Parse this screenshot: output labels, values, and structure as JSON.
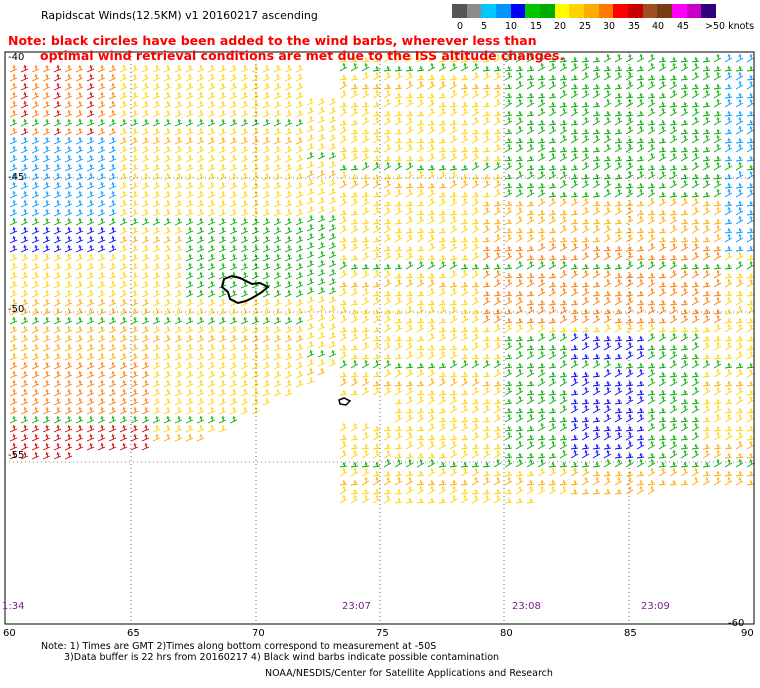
{
  "header": {
    "title": "Rapidscat Winds(12.5KM) v1 20160217 ascending",
    "note_line1": "Note: black circles have been added to the wind barbs, wherever less than",
    "note_line2": "optimal wind retrieval conditions are met due to the ISS altitude changes."
  },
  "colorbar": {
    "colors": [
      "#555555",
      "#8c8c8c",
      "#00c8ff",
      "#0096ff",
      "#0000ff",
      "#00c800",
      "#00aa00",
      "#ffff00",
      "#ffd200",
      "#ffaa00",
      "#ff7800",
      "#ff0000",
      "#c80000",
      "#a05020",
      "#783c14",
      "#ff00ff",
      "#c800c8",
      "#320078"
    ],
    "labels": [
      "0",
      "5",
      "10",
      "15",
      "20",
      "25",
      "30",
      "35",
      "40",
      "45",
      ">50 knots"
    ]
  },
  "map": {
    "latitude_labels": [
      "-40",
      "-45",
      "-50",
      "-55",
      "-60"
    ],
    "longitude_labels": [
      "60",
      "65",
      "70",
      "75",
      "80",
      "85",
      "90"
    ],
    "time_labels": [
      "1:34",
      "23:07",
      "23:08",
      "23:09"
    ]
  },
  "footer": {
    "note1": "Note: 1) Times are GMT 2)Times along bottom correspond to measurement at -50S",
    "note2": "3)Data buffer is 22 hrs from 20160217 4) Black wind barbs indicate possible contamination",
    "credit": "NOAA/NESDIS/Center for Satellite Applications and Research"
  }
}
